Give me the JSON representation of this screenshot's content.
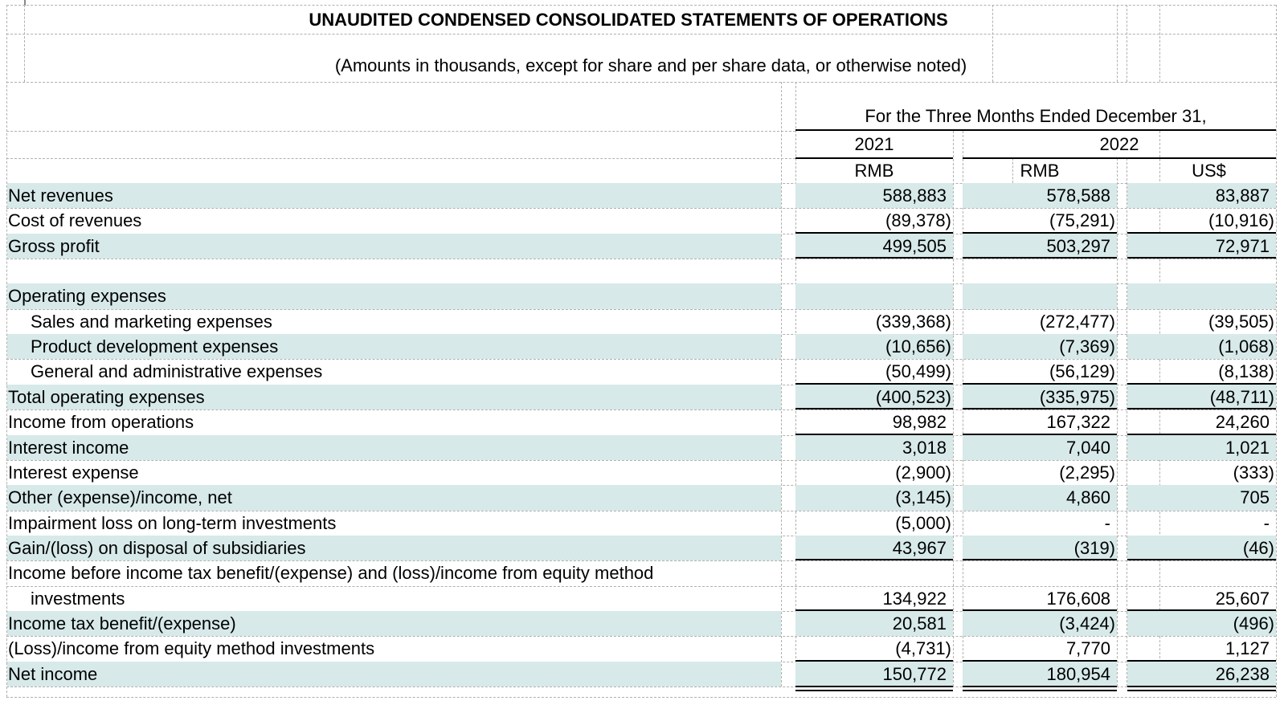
{
  "title": "UNAUDITED CONDENSED CONSOLIDATED STATEMENTS OF OPERATIONS",
  "subtitle": "(Amounts in thousands, except for share and per share data, or otherwise noted)",
  "columns": {
    "group_label": "For the Three Months Ended December 31,",
    "y2021": {
      "year": "2021",
      "currency": "RMB"
    },
    "y2022": {
      "year": "2022",
      "currency_rmb": "RMB",
      "currency_usd": "US$"
    }
  },
  "style_colors": {
    "shading": "#d7e9e9",
    "gridline": "#b0b0b0",
    "rule": "#000000"
  },
  "rows": [
    {
      "label": "Net revenues",
      "indent": 0,
      "values": [
        "588,883",
        "578,588",
        "83,887"
      ],
      "shaded": true,
      "rule": "none"
    },
    {
      "label": "Cost of revenues",
      "indent": 0,
      "values": [
        "(89,378)",
        "(75,291)",
        "(10,916)"
      ],
      "shaded": false,
      "rule": "single"
    },
    {
      "label": "Gross profit",
      "indent": 0,
      "values": [
        "499,505",
        "503,297",
        "72,971"
      ],
      "shaded": true,
      "rule": "single"
    },
    {
      "label": "",
      "indent": 0,
      "values": [
        "",
        "",
        ""
      ],
      "shaded": false,
      "rule": "none"
    },
    {
      "label": "Operating expenses",
      "indent": 0,
      "values": [
        "",
        "",
        ""
      ],
      "shaded": true,
      "rule": "none"
    },
    {
      "label": "Sales and marketing expenses",
      "indent": 1,
      "values": [
        "(339,368)",
        "(272,477)",
        "(39,505)"
      ],
      "shaded": false,
      "rule": "none"
    },
    {
      "label": "Product development expenses",
      "indent": 1,
      "values": [
        "(10,656)",
        "(7,369)",
        "(1,068)"
      ],
      "shaded": true,
      "rule": "none"
    },
    {
      "label": "General and administrative expenses",
      "indent": 1,
      "values": [
        "(50,499)",
        "(56,129)",
        "(8,138)"
      ],
      "shaded": false,
      "rule": "single"
    },
    {
      "label": "Total operating expenses",
      "indent": 0,
      "values": [
        "(400,523)",
        "(335,975)",
        "(48,711)"
      ],
      "shaded": true,
      "rule": "single"
    },
    {
      "label": "Income from operations",
      "indent": 0,
      "values": [
        "98,982",
        "167,322",
        "24,260"
      ],
      "shaded": false,
      "rule": "single"
    },
    {
      "label": "Interest income",
      "indent": 0,
      "values": [
        "3,018",
        "7,040",
        "1,021"
      ],
      "shaded": true,
      "rule": "none"
    },
    {
      "label": "Interest expense",
      "indent": 0,
      "values": [
        "(2,900)",
        "(2,295)",
        "(333)"
      ],
      "shaded": false,
      "rule": "none"
    },
    {
      "label": "Other (expense)/income, net",
      "indent": 0,
      "values": [
        "(3,145)",
        "4,860",
        "705"
      ],
      "shaded": true,
      "rule": "none"
    },
    {
      "label": "Impairment loss on long-term investments",
      "indent": 0,
      "values": [
        "(5,000)",
        "-",
        "-"
      ],
      "shaded": false,
      "rule": "none"
    },
    {
      "label": "Gain/(loss) on disposal of subsidiaries",
      "indent": 0,
      "values": [
        "43,967",
        "(319)",
        "(46)"
      ],
      "shaded": true,
      "rule": "single"
    },
    {
      "label": "Income before income tax benefit/(expense) and (loss)/income from equity method",
      "indent": 0,
      "values": [
        "",
        "",
        ""
      ],
      "shaded": false,
      "rule": "none"
    },
    {
      "label": "investments",
      "indent": 1,
      "values": [
        "134,922",
        "176,608",
        "25,607"
      ],
      "shaded": false,
      "rule": "single"
    },
    {
      "label": "Income tax benefit/(expense)",
      "indent": 0,
      "values": [
        "20,581",
        "(3,424)",
        "(496)"
      ],
      "shaded": true,
      "rule": "none"
    },
    {
      "label": "(Loss)/income from equity method investments",
      "indent": 0,
      "values": [
        "(4,731)",
        "7,770",
        "1,127"
      ],
      "shaded": false,
      "rule": "single"
    },
    {
      "label": "Net income",
      "indent": 0,
      "values": [
        "150,772",
        "180,954",
        "26,238"
      ],
      "shaded": true,
      "rule": "double"
    }
  ]
}
